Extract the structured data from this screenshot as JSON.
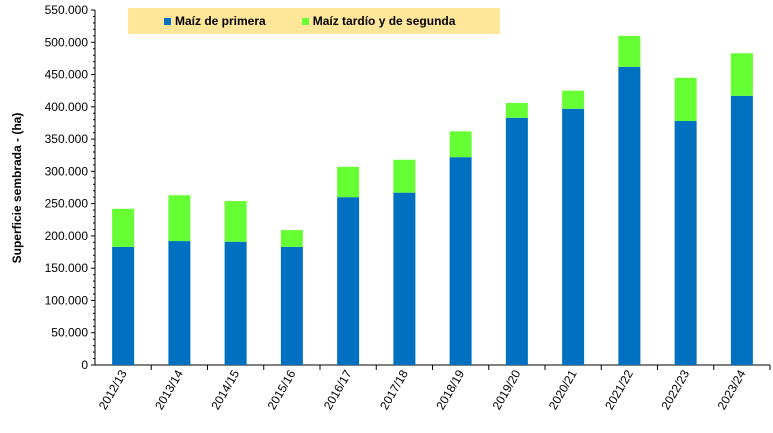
{
  "chart_data": {
    "type": "bar",
    "stacked": true,
    "title": "",
    "xlabel": "",
    "ylabel": "Superficie sembrada - (ha)",
    "ylim": [
      0,
      550000
    ],
    "yticks": [
      "0",
      "50.000",
      "100.000",
      "150.000",
      "200.000",
      "250.000",
      "300.000",
      "350.000",
      "400.000",
      "450.000",
      "500.000",
      "550.000"
    ],
    "categories": [
      "2012/13",
      "2013/14",
      "2014/15",
      "2015/16",
      "2016/17",
      "2017/18",
      "2018/19",
      "2019/20",
      "2020/21",
      "2021/22",
      "2022/23",
      "2023/24"
    ],
    "series": [
      {
        "name": "Maíz de primera",
        "color": "#0070C0",
        "values": [
          183000,
          192000,
          191000,
          183000,
          260000,
          267000,
          322000,
          383000,
          397000,
          462000,
          378000,
          417000
        ]
      },
      {
        "name": "Maíz tardío y de segunda",
        "color": "#66FF33",
        "values": [
          59000,
          71000,
          63000,
          26000,
          47000,
          51000,
          40000,
          23000,
          28000,
          48000,
          67000,
          66000
        ]
      }
    ],
    "legend_position": "top",
    "grid": false
  }
}
